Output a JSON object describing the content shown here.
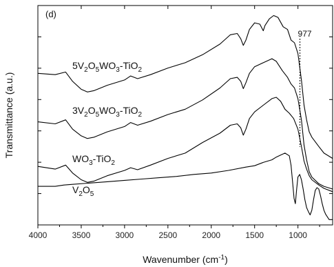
{
  "chart_data": {
    "type": "line",
    "panel_label": "(d)",
    "xlabel": "Wavenumber (cm",
    "xlabel_sup": "-1",
    "xlabel_end": ")",
    "ylabel": "Transmittance (a.u.)",
    "xlim": [
      4000,
      600
    ],
    "x_reversed": true,
    "x_ticks": [
      4000,
      3500,
      3000,
      2500,
      2000,
      1500,
      1000
    ],
    "y_ticks_labeled": false,
    "grid": false,
    "annotation": {
      "text": "977",
      "x": 977
    },
    "series": [
      {
        "name": "5V2O5WO3-TiO2",
        "label_parts": [
          [
            "5V",
            ""
          ],
          [
            "2",
            "sub"
          ],
          [
            "O",
            ""
          ],
          [
            "5",
            "sub"
          ],
          [
            "WO",
            ""
          ],
          [
            "3",
            "sub"
          ],
          [
            "-TiO",
            ""
          ],
          [
            "2",
            "sub"
          ]
        ],
        "points": [
          [
            4000,
            102
          ],
          [
            3800,
            104
          ],
          [
            3680,
            100
          ],
          [
            3600,
            114
          ],
          [
            3500,
            126
          ],
          [
            3430,
            130
          ],
          [
            3350,
            128
          ],
          [
            3200,
            120
          ],
          [
            3000,
            112
          ],
          [
            2930,
            106
          ],
          [
            2850,
            110
          ],
          [
            2700,
            104
          ],
          [
            2500,
            94
          ],
          [
            2300,
            86
          ],
          [
            2100,
            74
          ],
          [
            1900,
            58
          ],
          [
            1780,
            44
          ],
          [
            1700,
            42
          ],
          [
            1660,
            50
          ],
          [
            1630,
            60
          ],
          [
            1600,
            52
          ],
          [
            1560,
            36
          ],
          [
            1500,
            26
          ],
          [
            1440,
            28
          ],
          [
            1400,
            38
          ],
          [
            1380,
            30
          ],
          [
            1330,
            20
          ],
          [
            1280,
            15
          ],
          [
            1230,
            18
          ],
          [
            1170,
            32
          ],
          [
            1120,
            36
          ],
          [
            1080,
            52
          ],
          [
            1040,
            56
          ],
          [
            1000,
            72
          ],
          [
            960,
            112
          ],
          [
            930,
            150
          ],
          [
            900,
            172
          ],
          [
            870,
            190
          ],
          [
            840,
            198
          ],
          [
            760,
            212
          ],
          [
            700,
            222
          ],
          [
            600,
            230
          ]
        ]
      },
      {
        "name": "3V2O5WO3-TiO2",
        "label_parts": [
          [
            "3V",
            ""
          ],
          [
            "2",
            "sub"
          ],
          [
            "O",
            ""
          ],
          [
            "5",
            "sub"
          ],
          [
            "WO",
            ""
          ],
          [
            "3",
            "sub"
          ],
          [
            "-TiO",
            ""
          ],
          [
            "2",
            "sub"
          ]
        ],
        "points": [
          [
            4000,
            175
          ],
          [
            3800,
            178
          ],
          [
            3680,
            172
          ],
          [
            3600,
            186
          ],
          [
            3500,
            196
          ],
          [
            3430,
            200
          ],
          [
            3350,
            198
          ],
          [
            3200,
            190
          ],
          [
            3000,
            182
          ],
          [
            2930,
            176
          ],
          [
            2850,
            180
          ],
          [
            2700,
            174
          ],
          [
            2500,
            164
          ],
          [
            2300,
            156
          ],
          [
            2100,
            142
          ],
          [
            1900,
            124
          ],
          [
            1780,
            110
          ],
          [
            1700,
            108
          ],
          [
            1660,
            114
          ],
          [
            1630,
            125
          ],
          [
            1600,
            116
          ],
          [
            1560,
            102
          ],
          [
            1500,
            92
          ],
          [
            1400,
            86
          ],
          [
            1300,
            80
          ],
          [
            1250,
            84
          ],
          [
            1180,
            98
          ],
          [
            1120,
            108
          ],
          [
            1080,
            118
          ],
          [
            1040,
            124
          ],
          [
            1000,
            140
          ],
          [
            960,
            172
          ],
          [
            930,
            210
          ],
          [
            900,
            232
          ],
          [
            870,
            250
          ],
          [
            840,
            258
          ],
          [
            760,
            268
          ],
          [
            700,
            272
          ],
          [
            600,
            276
          ]
        ]
      },
      {
        "name": "WO3-TiO2",
        "label_parts": [
          [
            "WO",
            ""
          ],
          [
            "3",
            "sub"
          ],
          [
            "-TiO",
            ""
          ],
          [
            "2",
            "sub"
          ]
        ],
        "points": [
          [
            4000,
            242
          ],
          [
            3800,
            246
          ],
          [
            3680,
            240
          ],
          [
            3600,
            252
          ],
          [
            3500,
            262
          ],
          [
            3430,
            266
          ],
          [
            3350,
            264
          ],
          [
            3200,
            256
          ],
          [
            3000,
            248
          ],
          [
            2930,
            244
          ],
          [
            2850,
            247
          ],
          [
            2700,
            240
          ],
          [
            2500,
            230
          ],
          [
            2300,
            222
          ],
          [
            2100,
            206
          ],
          [
            1900,
            192
          ],
          [
            1780,
            180
          ],
          [
            1700,
            178
          ],
          [
            1660,
            184
          ],
          [
            1630,
            195
          ],
          [
            1600,
            186
          ],
          [
            1560,
            170
          ],
          [
            1500,
            160
          ],
          [
            1400,
            150
          ],
          [
            1300,
            140
          ],
          [
            1250,
            138
          ],
          [
            1200,
            144
          ],
          [
            1150,
            156
          ],
          [
            1100,
            162
          ],
          [
            1050,
            170
          ],
          [
            1000,
            186
          ],
          [
            960,
            212
          ],
          [
            930,
            234
          ],
          [
            900,
            246
          ],
          [
            870,
            256
          ],
          [
            840,
            262
          ],
          [
            760,
            270
          ],
          [
            700,
            275
          ],
          [
            600,
            280
          ]
        ]
      },
      {
        "name": "V2O5",
        "label_parts": [
          [
            "V",
            ""
          ],
          [
            "2",
            "sub"
          ],
          [
            "O",
            ""
          ],
          [
            "5",
            "sub"
          ]
        ],
        "points": [
          [
            4000,
            272
          ],
          [
            3800,
            272
          ],
          [
            3700,
            270
          ],
          [
            3600,
            269
          ],
          [
            3400,
            267
          ],
          [
            3200,
            265
          ],
          [
            3000,
            263
          ],
          [
            2800,
            261
          ],
          [
            2600,
            259
          ],
          [
            2400,
            257
          ],
          [
            2200,
            254
          ],
          [
            2000,
            252
          ],
          [
            1800,
            248
          ],
          [
            1600,
            243
          ],
          [
            1500,
            241
          ],
          [
            1400,
            236
          ],
          [
            1300,
            232
          ],
          [
            1250,
            228
          ],
          [
            1200,
            225
          ],
          [
            1150,
            222
          ],
          [
            1100,
            226
          ],
          [
            1080,
            240
          ],
          [
            1060,
            268
          ],
          [
            1045,
            290
          ],
          [
            1030,
            298
          ],
          [
            1015,
            276
          ],
          [
            1000,
            258
          ],
          [
            980,
            254
          ],
          [
            960,
            262
          ],
          [
            940,
            276
          ],
          [
            920,
            292
          ],
          [
            900,
            304
          ],
          [
            880,
            310
          ],
          [
            860,
            315
          ],
          [
            840,
            308
          ],
          [
            820,
            292
          ],
          [
            800,
            278
          ],
          [
            780,
            274
          ],
          [
            760,
            276
          ],
          [
            740,
            286
          ],
          [
            720,
            298
          ],
          [
            700,
            308
          ],
          [
            680,
            314
          ],
          [
            660,
            318
          ],
          [
            640,
            322
          ],
          [
            620,
            322
          ],
          [
            600,
            322
          ]
        ]
      }
    ]
  }
}
